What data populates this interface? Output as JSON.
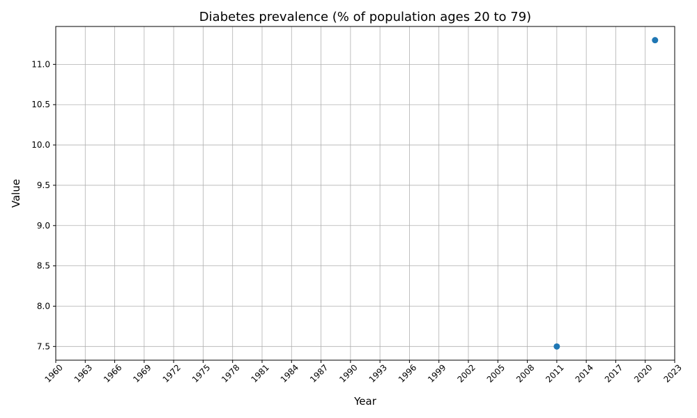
{
  "chart_data": {
    "type": "scatter",
    "title": "Diabetes prevalence (% of population ages 20 to 79)",
    "xlabel": "Year",
    "ylabel": "Value",
    "xlim": [
      1960,
      2023
    ],
    "ylim": [
      7.33,
      11.47
    ],
    "x_ticks": [
      1960,
      1963,
      1966,
      1969,
      1972,
      1975,
      1978,
      1981,
      1984,
      1987,
      1990,
      1993,
      1996,
      1999,
      2002,
      2005,
      2008,
      2011,
      2014,
      2017,
      2020,
      2023
    ],
    "y_ticks": [
      7.5,
      8.0,
      8.5,
      9.0,
      9.5,
      10.0,
      10.5,
      11.0
    ],
    "grid": true,
    "series": [
      {
        "color": "#1f77b4",
        "points": [
          {
            "x": 2011,
            "y": 7.5
          },
          {
            "x": 2021,
            "y": 11.3
          }
        ]
      }
    ]
  }
}
